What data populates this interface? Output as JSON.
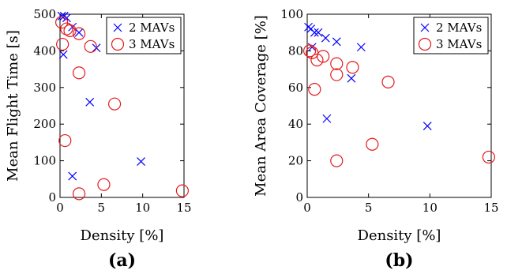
{
  "colors": {
    "two_mavs": "#0000ff",
    "three_mavs": "#e41a1c"
  },
  "chart_data": [
    {
      "type": "scatter",
      "panel_label": "(a)",
      "xlabel": "Density [%]",
      "ylabel": "Mean Flight Time [s]",
      "xlim": [
        0,
        15
      ],
      "ylim": [
        0,
        500
      ],
      "xticks": [
        0,
        5,
        10,
        15
      ],
      "yticks": [
        0,
        100,
        200,
        300,
        400,
        500
      ],
      "grid": false,
      "legend": "top-right",
      "series": [
        {
          "name": "2 MAVs",
          "marker": "x",
          "x": [
            0.2,
            0.5,
            0.8,
            0.4,
            1.5,
            2.3,
            3.6,
            4.4,
            1.5,
            9.8
          ],
          "y": [
            495,
            495,
            490,
            390,
            465,
            450,
            260,
            408,
            58,
            98
          ]
        },
        {
          "name": "3 MAVs",
          "marker": "o",
          "x": [
            0.2,
            0.3,
            0.8,
            1.2,
            2.3,
            3.7,
            2.3,
            0.6,
            6.6,
            5.3,
            2.3,
            14.8
          ],
          "y": [
            478,
            418,
            460,
            455,
            447,
            412,
            340,
            155,
            255,
            35,
            10,
            18
          ]
        }
      ]
    },
    {
      "type": "scatter",
      "panel_label": "(b)",
      "xlabel": "Density [%]",
      "ylabel": "Mean Area Coverage [%]",
      "xlim": [
        0,
        15
      ],
      "ylim": [
        0,
        100
      ],
      "xticks": [
        0,
        5,
        10,
        15
      ],
      "yticks": [
        0,
        20,
        40,
        60,
        80,
        100
      ],
      "grid": false,
      "legend": "top-right",
      "series": [
        {
          "name": "2 MAVs",
          "marker": "x",
          "x": [
            0.1,
            0.3,
            0.6,
            0.9,
            1.5,
            2.4,
            3.6,
            4.4,
            1.6,
            9.8,
            0.4
          ],
          "y": [
            93,
            92,
            90,
            90,
            87,
            85,
            65,
            82,
            43,
            39,
            82
          ]
        },
        {
          "name": "3 MAVs",
          "marker": "o",
          "x": [
            0.2,
            0.4,
            0.8,
            1.3,
            2.4,
            3.7,
            2.4,
            0.6,
            6.6,
            5.3,
            2.4,
            14.8
          ],
          "y": [
            80,
            79,
            75,
            77,
            73,
            71,
            67,
            59,
            63,
            29,
            20,
            22
          ]
        }
      ]
    }
  ]
}
